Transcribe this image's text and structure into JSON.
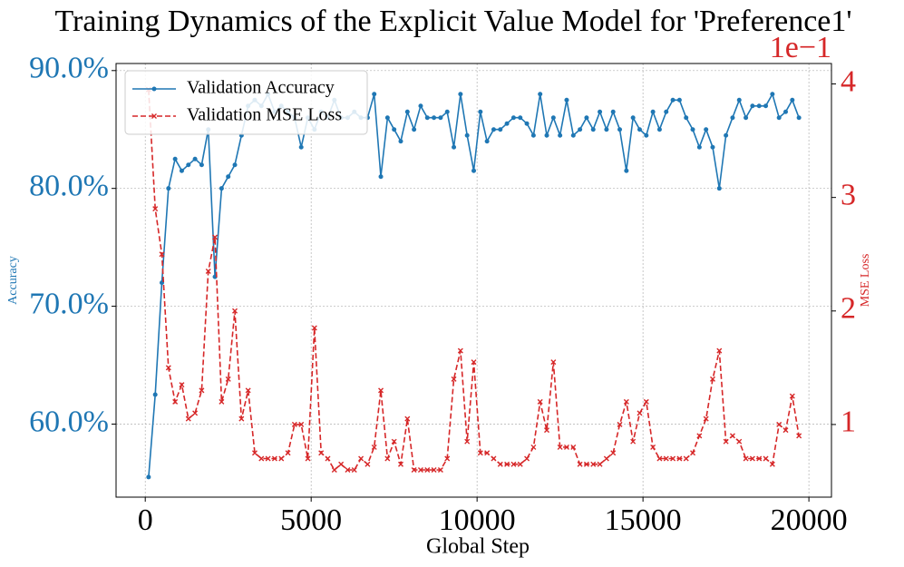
{
  "chart_data": {
    "type": "line",
    "title": "Training Dynamics of the Explicit Value Model for 'Preference1'",
    "xlabel": "Global Step",
    "ylabel": "Accuracy",
    "y2label": "MSE Loss",
    "y2_offset_label": "1e−1",
    "x": [
      100,
      300,
      500,
      700,
      900,
      1100,
      1300,
      1500,
      1700,
      1900,
      2100,
      2300,
      2500,
      2700,
      2900,
      3100,
      3300,
      3500,
      3700,
      3900,
      4100,
      4300,
      4500,
      4700,
      4900,
      5100,
      5300,
      5500,
      5700,
      5900,
      6100,
      6300,
      6500,
      6700,
      6900,
      7100,
      7300,
      7500,
      7700,
      7900,
      8100,
      8300,
      8500,
      8700,
      8900,
      9100,
      9300,
      9500,
      9700,
      9900,
      10100,
      10300,
      10500,
      10700,
      10900,
      11100,
      11300,
      11500,
      11700,
      11900,
      12100,
      12300,
      12500,
      12700,
      12900,
      13100,
      13300,
      13500,
      13700,
      13900,
      14100,
      14300,
      14500,
      14700,
      14900,
      15100,
      15300,
      15500,
      15700,
      15900,
      16100,
      16300,
      16500,
      16700,
      16900,
      17100,
      17300,
      17500,
      17700,
      17900,
      18100,
      18300,
      18500,
      18700,
      18900,
      19100,
      19300,
      19500,
      19700
    ],
    "series": [
      {
        "name": "Validation Accuracy",
        "color": "#1f77b4",
        "marker": "o",
        "linestyle": "solid",
        "axis": "y",
        "values": [
          55.5,
          62.5,
          72,
          80,
          82.5,
          81.5,
          82,
          82.5,
          82,
          85,
          72.5,
          80,
          81,
          82,
          84.5,
          87,
          87.5,
          87,
          88,
          86.5,
          87,
          86.5,
          86,
          83.5,
          86,
          85,
          86.5,
          86,
          87.5,
          86,
          86,
          86.5,
          86,
          86,
          88,
          81,
          86,
          85,
          84,
          86.5,
          85,
          87,
          86,
          86,
          86,
          86.5,
          83.5,
          88,
          84.5,
          81.5,
          86.5,
          84,
          85,
          85,
          85.5,
          86,
          86,
          85.5,
          84.5,
          88,
          84.5,
          86,
          84.5,
          87.5,
          84.5,
          85,
          86,
          85,
          86.5,
          85,
          86.5,
          85,
          81.5,
          86,
          85,
          84.5,
          86.5,
          85,
          86.5,
          87.5,
          87.5,
          86,
          85,
          83.5,
          85,
          83.5,
          80,
          84.5,
          86,
          87.5,
          86,
          87,
          87,
          87,
          88,
          86,
          86.5,
          87.5,
          86
        ]
      },
      {
        "name": "Validation MSE Loss",
        "color": "#d62728",
        "marker": "x",
        "linestyle": "dashed",
        "axis": "y2",
        "values": [
          3.95,
          2.9,
          2.5,
          1.5,
          1.2,
          1.35,
          1.05,
          1.1,
          1.3,
          2.35,
          2.65,
          1.2,
          1.4,
          2.0,
          1.05,
          1.3,
          0.75,
          0.7,
          0.7,
          0.7,
          0.7,
          0.75,
          1.0,
          1.0,
          0.7,
          1.85,
          0.75,
          0.7,
          0.6,
          0.65,
          0.6,
          0.6,
          0.7,
          0.65,
          0.8,
          1.3,
          0.7,
          0.85,
          0.65,
          1.05,
          0.6,
          0.6,
          0.6,
          0.6,
          0.6,
          0.7,
          1.4,
          1.65,
          0.85,
          1.55,
          0.75,
          0.75,
          0.7,
          0.65,
          0.65,
          0.65,
          0.65,
          0.7,
          0.8,
          1.2,
          0.95,
          1.55,
          0.8,
          0.8,
          0.8,
          0.65,
          0.65,
          0.65,
          0.65,
          0.7,
          0.75,
          1.0,
          1.2,
          0.85,
          1.1,
          1.2,
          0.8,
          0.7,
          0.7,
          0.7,
          0.7,
          0.7,
          0.75,
          0.9,
          1.05,
          1.4,
          1.65,
          0.85,
          0.9,
          0.85,
          0.7,
          0.7,
          0.7,
          0.7,
          0.65,
          1.0,
          0.95,
          1.25,
          0.9
        ]
      }
    ],
    "xlim": [
      -880,
      20680
    ],
    "xticks": [
      0,
      5000,
      10000,
      15000,
      20000
    ],
    "ylim": [
      53.8,
      90.6
    ],
    "yticks": [
      {
        "value": 60,
        "label": "60.0%"
      },
      {
        "value": 70,
        "label": "70.0%"
      },
      {
        "value": 80,
        "label": "80.0%"
      },
      {
        "value": 90,
        "label": "90.0%"
      }
    ],
    "y2lim": [
      0.36,
      4.18
    ],
    "y2ticks": [
      1,
      2,
      3,
      4
    ],
    "grid": true,
    "legend": "upper left"
  }
}
